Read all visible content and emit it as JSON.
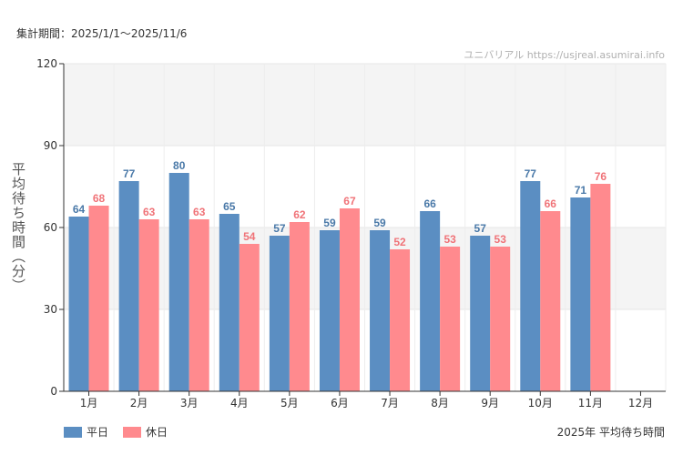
{
  "period_text": "集計期間：2025/1/1〜2025/11/6",
  "credit_text": "ユニバリアル  https://usjreal.asumirai.info",
  "caption_text": "2025年 平均待ち時間",
  "colors": {
    "weekday": "#5b8ec2",
    "holiday": "#ff8a8e",
    "weekday_label": "#4a79a8",
    "holiday_label": "#f07378",
    "band": "#f4f4f4"
  },
  "chart_data": {
    "type": "bar",
    "title": "",
    "xlabel": "",
    "ylabel": "平均待ち時間（分）",
    "ylim": [
      0,
      120
    ],
    "yticks": [
      0,
      30,
      60,
      90,
      120
    ],
    "grid": true,
    "legend_position": "bottom-left",
    "categories": [
      "1月",
      "2月",
      "3月",
      "4月",
      "5月",
      "6月",
      "7月",
      "8月",
      "9月",
      "10月",
      "11月",
      "12月"
    ],
    "series": [
      {
        "name": "平日",
        "values": [
          64,
          77,
          80,
          65,
          57,
          59,
          59,
          66,
          57,
          77,
          71,
          null
        ]
      },
      {
        "name": "休日",
        "values": [
          68,
          63,
          63,
          54,
          62,
          67,
          52,
          53,
          53,
          66,
          76,
          null
        ]
      }
    ]
  }
}
